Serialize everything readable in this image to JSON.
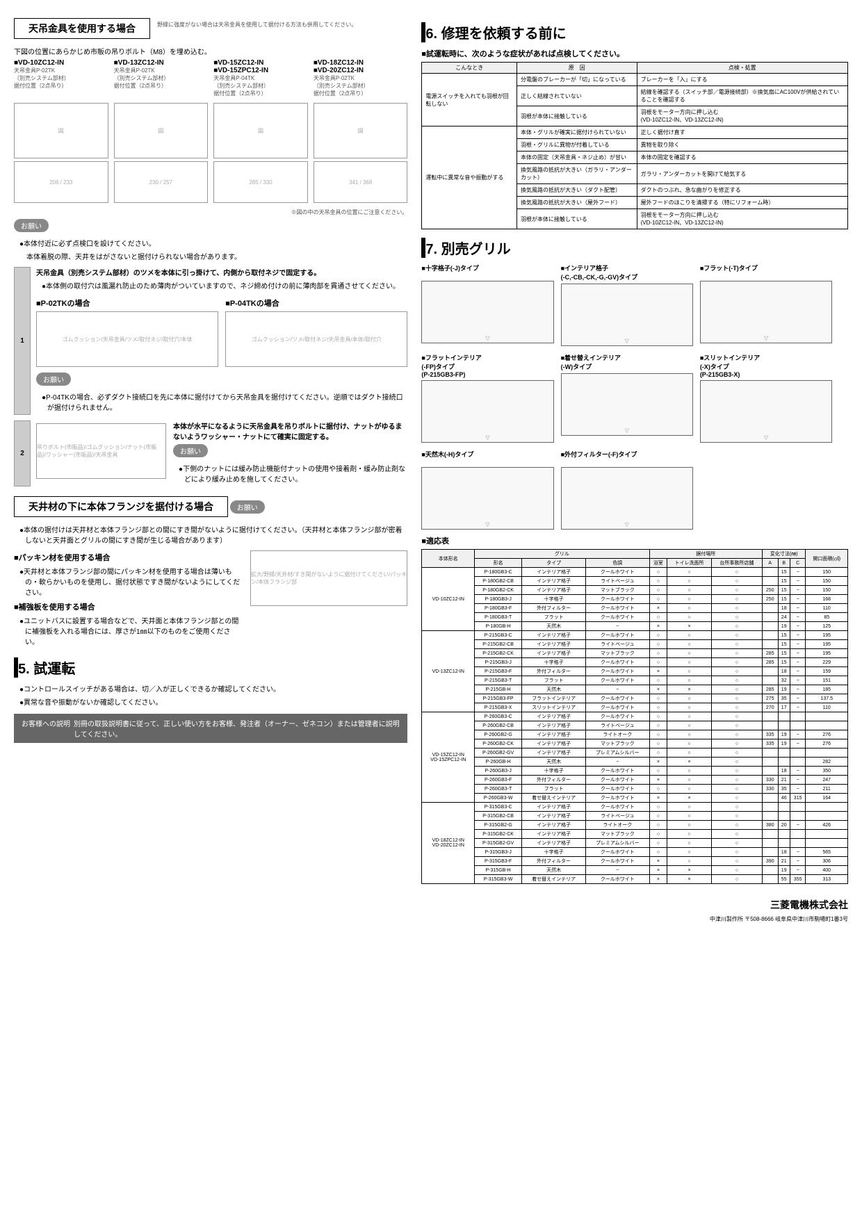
{
  "left": {
    "hang_title": "天吊金具を使用する場合",
    "hang_note": "野縁に強度がない場合は天吊金具を使用して据付ける方法も併用してください。",
    "hang_sub": "下図の位置にあらかじめ市販の吊りボルト（M8）を埋め込む。",
    "models": [
      {
        "name": "■VD-10ZC12-IN",
        "part": "天吊金具P-02TK\n（別売システム部材）\n据付位置（2点吊り）"
      },
      {
        "name": "■VD-13ZC12-IN",
        "part": "天吊金具P-02TK\n（別売システム部材）\n据付位置（2点吊り）"
      },
      {
        "name": "■VD-15ZC12-IN\n■VD-15ZPC12-IN",
        "part": "天吊金具P-04TK\n（別売システム部材）\n据付位置（2点吊り）"
      },
      {
        "name": "■VD-18ZC12-IN\n■VD-20ZC12-IN",
        "part": "天吊金具P-02TK\n（別売システム部材）\n据付位置（2点吊り）"
      }
    ],
    "caution1": "お願い",
    "caution1_txt": [
      "●本体付近に必ず点検口を設けてください。",
      "　本体着脱の際、天井をはがさないと据付けられない場合があります。"
    ],
    "step1_title": "天吊金具（別売システム部材）のツメを本体に引っ掛けて、内側から取付ネジで固定する。",
    "step1_note": "●本体側の取付穴は風漏れ防止のため薄肉がついていますので、ネジ締め付けの前に薄肉部を貫通させてください。",
    "p02_label": "■P-02TKの場合",
    "p04_label": "■P-04TKの場合",
    "caution2": "お願い",
    "caution2_txt": "●P-04TKの場合、必ずダクト接続口を先に本体に据付けてから天吊金具を据付けてください。逆順ではダクト接続口が据付けられません。",
    "step2_txt": "本体が水平になるように天吊金具を吊りボルトに据付け、ナットがゆるまないようワッシャー・ナットにて確実に固定する。",
    "caution3": "お願い",
    "caution3_txt": "●下側のナットには緩み防止機能付ナットの使用や接着剤・緩み防止剤などにより緩み止めを施してください。",
    "flange_title": "天井材の下に本体フランジを据付ける場合",
    "caution4": "お願い",
    "caution4_txt": "●本体の据付けは天井材と本体フランジ部との間にすき間がないように据付けてください。（天井材と本体フランジ部が密着しないと天井面とグリルの間にすき間が生じる場合があります）",
    "packing_label": "■パッキン材を使用する場合",
    "packing_txt": "●天井材と本体フランジ部の間にパッキン材を使用する場合は薄いもの・軟らかいものを使用し、据付状態ですき間がないようにしてください。",
    "reinforce_label": "■補強板を使用する場合",
    "reinforce_txt": "●ユニットバスに設置する場合などで、天井面と本体フランジ部との間に補強板を入れる場合には、厚さが1㎜以下のものをご使用ください。",
    "sec5_title": "5. 試運転",
    "sec5_b1": "●コントロールスイッチがある場合は、切／入が正しくできるか確認してください。",
    "sec5_b2": "●異常な音や振動がないか確認してください。",
    "cust_label": "お客様への説明",
    "cust_txt": "別冊の取扱説明書に従って、正しい使い方をお客様、発注者（オーナー、ゼネコン）または管理者に説明してください。"
  },
  "right": {
    "sec6_title": "6. 修理を依頼する前に",
    "sec6_sub": "■試運転時に、次のような症状があれば点検してください。",
    "trouble_headers": [
      "こんなとき",
      "原　因",
      "点検・処置"
    ],
    "trouble_rows": [
      {
        "group": "電源スイッチを入れても羽根が回転しない",
        "cause": "分電盤のブレーカーが「切」になっている",
        "fix": "ブレーカーを「入」にする"
      },
      {
        "group": "",
        "cause": "正しく結線されていない",
        "fix": "結線を確認する（スイッチ部／電源接続部）※換気扇にAC100Vが供給されていることを確認する"
      },
      {
        "group": "",
        "cause": "羽根が本体に接触している",
        "fix": "羽根をモーター方向に押し込む\n(VD-10ZC12-IN、VD-13ZC12-IN)"
      },
      {
        "group": "運転中に異常な音や振動がする",
        "cause": "本体・グリルが確実に据付けられていない",
        "fix": "正しく据付け直す"
      },
      {
        "group": "",
        "cause": "羽根・グリルに異物が付着している",
        "fix": "異物を取り除く"
      },
      {
        "group": "",
        "cause": "本体の固定（天吊金具・ネジ止め）が甘い",
        "fix": "本体の固定を確認する"
      },
      {
        "group": "",
        "cause": "換気風路の抵抗が大きい（ガラリ・アンダーカット）",
        "fix": "ガラリ・アンダーカットを開けて給気する"
      },
      {
        "group": "",
        "cause": "換気風路の抵抗が大きい（ダクト配管）",
        "fix": "ダクトのつぶれ、急な曲がりを修正する"
      },
      {
        "group": "",
        "cause": "換気風路の抵抗が大きい（屋外フード）",
        "fix": "屋外フードのほこりを清掃する（特にリフォーム時）"
      },
      {
        "group": "",
        "cause": "羽根が本体に接触している",
        "fix": "羽根をモーター方向に押し込む\n(VD-10ZC12-IN、VD-13ZC12-IN)"
      }
    ],
    "sec7_title": "7. 別売グリル",
    "grills": [
      {
        "label": "■十字格子(-J)タイプ"
      },
      {
        "label": "■インテリア格子\n(-C,-CB,-CK,-G,-GV)タイプ"
      },
      {
        "label": "■フラット(-T)タイプ"
      },
      {
        "label": "■フラットインテリア\n(-FP)タイプ\n(P-215GB3-FP)"
      },
      {
        "label": "■着せ替えインテリア\n(-W)タイプ"
      },
      {
        "label": "■スリットインテリア\n(-X)タイプ\n(P-215GB3-X)"
      },
      {
        "label": "■天然木(-H)タイプ"
      },
      {
        "label": "■外付フィルター(-F)タイプ"
      }
    ],
    "compat_title": "■適応表",
    "compat_headers": [
      "本体形名",
      "形名",
      "タイプ",
      "色調",
      "浴室",
      "トイレ洗面所",
      "台所事務所店舗",
      "A",
      "B",
      "C",
      "開口面積(㎠)"
    ],
    "compat_groups": [
      {
        "model": "VD-10ZC12-IN",
        "rows": [
          [
            "P-180GB3-C",
            "インテリア格子",
            "クールホワイト",
            "○",
            "○",
            "○",
            "",
            "15",
            "−",
            "150"
          ],
          [
            "P-180GB2-CB",
            "インテリア格子",
            "ライトベージュ",
            "○",
            "○",
            "○",
            "",
            "15",
            "−",
            "150"
          ],
          [
            "P-180GB2-CK",
            "インテリア格子",
            "マットブラック",
            "○",
            "○",
            "○",
            "250",
            "15",
            "−",
            "150"
          ],
          [
            "P-180GB3-J",
            "十字格子",
            "クールホワイト",
            "○",
            "○",
            "○",
            "250",
            "15",
            "−",
            "168"
          ],
          [
            "P-180GB3-F",
            "外付フィルター",
            "クールホワイト",
            "×",
            "○",
            "○",
            "",
            "18",
            "−",
            "110"
          ],
          [
            "P-180GB3-T",
            "フラット",
            "クールホワイト",
            "○",
            "○",
            "○",
            "",
            "24",
            "−",
            "85"
          ],
          [
            "P-180GB-H",
            "天然木",
            "−",
            "×",
            "×",
            "○",
            "",
            "19",
            "−",
            "125"
          ]
        ]
      },
      {
        "model": "VD-13ZC12-IN",
        "rows": [
          [
            "P-215GB3-C",
            "インテリア格子",
            "クールホワイト",
            "○",
            "○",
            "○",
            "",
            "15",
            "−",
            "195"
          ],
          [
            "P-215GB2-CB",
            "インテリア格子",
            "ライトベージュ",
            "○",
            "○",
            "○",
            "",
            "15",
            "−",
            "195"
          ],
          [
            "P-215GB2-CK",
            "インテリア格子",
            "マットブラック",
            "○",
            "○",
            "○",
            "285",
            "15",
            "−",
            "195"
          ],
          [
            "P-215GB3-J",
            "十字格子",
            "クールホワイト",
            "○",
            "○",
            "○",
            "285",
            "15",
            "−",
            "229"
          ],
          [
            "P-215GB3-F",
            "外付フィルター",
            "クールホワイト",
            "×",
            "○",
            "○",
            "",
            "18",
            "−",
            "159"
          ],
          [
            "P-215GB3-T",
            "フラット",
            "クールホワイト",
            "○",
            "○",
            "○",
            "",
            "32",
            "−",
            "151"
          ],
          [
            "P-215GB-H",
            "天然木",
            "−",
            "×",
            "×",
            "○",
            "285",
            "19",
            "−",
            "185"
          ],
          [
            "P-215GB3-FP",
            "フラットインテリア",
            "クールホワイト",
            "○",
            "○",
            "○",
            "275",
            "35",
            "−",
            "137.5"
          ],
          [
            "P-215GB3-X",
            "スリットインテリア",
            "クールホワイト",
            "○",
            "○",
            "○",
            "270",
            "17",
            "−",
            "110"
          ]
        ]
      },
      {
        "model": "VD-15ZC12-IN\nVD-15ZPC12-IN",
        "rows": [
          [
            "P-260GB3-C",
            "インテリア格子",
            "クールホワイト",
            "○",
            "○",
            "○",
            "",
            "",
            "",
            ""
          ],
          [
            "P-260GB2-CB",
            "インテリア格子",
            "ライトベージュ",
            "○",
            "○",
            "○",
            "",
            "",
            "",
            ""
          ],
          [
            "P-260GB2-G",
            "インテリア格子",
            "ライトオーク",
            "○",
            "○",
            "○",
            "335",
            "19",
            "−",
            "276"
          ],
          [
            "P-260GB2-CK",
            "インテリア格子",
            "マットブラック",
            "○",
            "○",
            "○",
            "335",
            "19",
            "−",
            "276"
          ],
          [
            "P-260GB2-GV",
            "インテリア格子",
            "プレミアムシルバー",
            "○",
            "○",
            "○",
            "",
            "",
            "",
            ""
          ],
          [
            "P-260GB-H",
            "天然木",
            "−",
            "×",
            "×",
            "○",
            "",
            "",
            "",
            "282"
          ],
          [
            "P-260GB3-J",
            "十字格子",
            "クールホワイト",
            "○",
            "○",
            "○",
            "",
            "18",
            "−",
            "350"
          ],
          [
            "P-260GB3-F",
            "外付フィルター",
            "クールホワイト",
            "×",
            "○",
            "○",
            "330",
            "21",
            "−",
            "247"
          ],
          [
            "P-260GB3-T",
            "フラット",
            "クールホワイト",
            "○",
            "○",
            "○",
            "330",
            "35",
            "−",
            "211"
          ],
          [
            "P-260GB3-W",
            "着せ替えインテリア",
            "クールホワイト",
            "×",
            "×",
            "○",
            "",
            "46",
            "315",
            "164"
          ]
        ]
      },
      {
        "model": "VD-18ZC12-IN\nVD-20ZC12-IN",
        "rows": [
          [
            "P-315GB3-C",
            "インテリア格子",
            "クールホワイト",
            "○",
            "○",
            "○",
            "",
            "",
            "",
            ""
          ],
          [
            "P-315GB2-CB",
            "インテリア格子",
            "ライトベージュ",
            "○",
            "○",
            "○",
            "",
            "",
            "",
            ""
          ],
          [
            "P-315GB2-G",
            "インテリア格子",
            "ライトオーク",
            "○",
            "○",
            "○",
            "380",
            "20",
            "−",
            "426"
          ],
          [
            "P-315GB2-CK",
            "インテリア格子",
            "マットブラック",
            "○",
            "○",
            "○",
            "",
            "",
            "",
            ""
          ],
          [
            "P-315GB2-GV",
            "インテリア格子",
            "プレミアムシルバー",
            "○",
            "○",
            "○",
            "",
            "",
            "",
            ""
          ],
          [
            "P-315GB3-J",
            "十字格子",
            "クールホワイト",
            "○",
            "○",
            "○",
            "",
            "18",
            "−",
            "565"
          ],
          [
            "P-315GB3-F",
            "外付フィルター",
            "クールホワイト",
            "×",
            "○",
            "○",
            "390",
            "21",
            "−",
            "306"
          ],
          [
            "P-315GB-H",
            "天然木",
            "−",
            "×",
            "×",
            "○",
            "",
            "19",
            "−",
            "400"
          ],
          [
            "P-315GB3-W",
            "着せ替えインテリア",
            "クールホワイト",
            "×",
            "×",
            "○",
            "",
            "55",
            "355",
            "313"
          ]
        ]
      }
    ],
    "company": "三菱電機株式会社",
    "address": "中津川製作所 〒508-8666 岐阜県中津川市駒場町1番3号"
  }
}
